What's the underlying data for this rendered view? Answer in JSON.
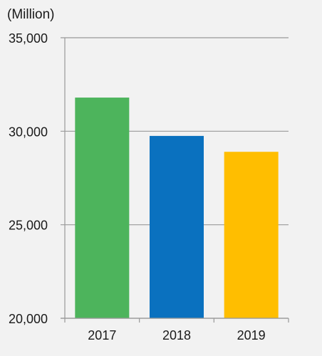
{
  "chart_data": {
    "type": "bar",
    "unit_label": "(Million)",
    "categories": [
      "2017",
      "2018",
      "2019"
    ],
    "values": [
      31800,
      29750,
      28900
    ],
    "colors": [
      "#4db45c",
      "#0a71bf",
      "#ffbe00"
    ],
    "ylim": [
      20000,
      35000
    ],
    "yticks": [
      "20,000",
      "25,000",
      "30,000",
      "35,000"
    ],
    "ytick_values": [
      20000,
      25000,
      30000,
      35000
    ],
    "grid": true,
    "legend": "none"
  }
}
